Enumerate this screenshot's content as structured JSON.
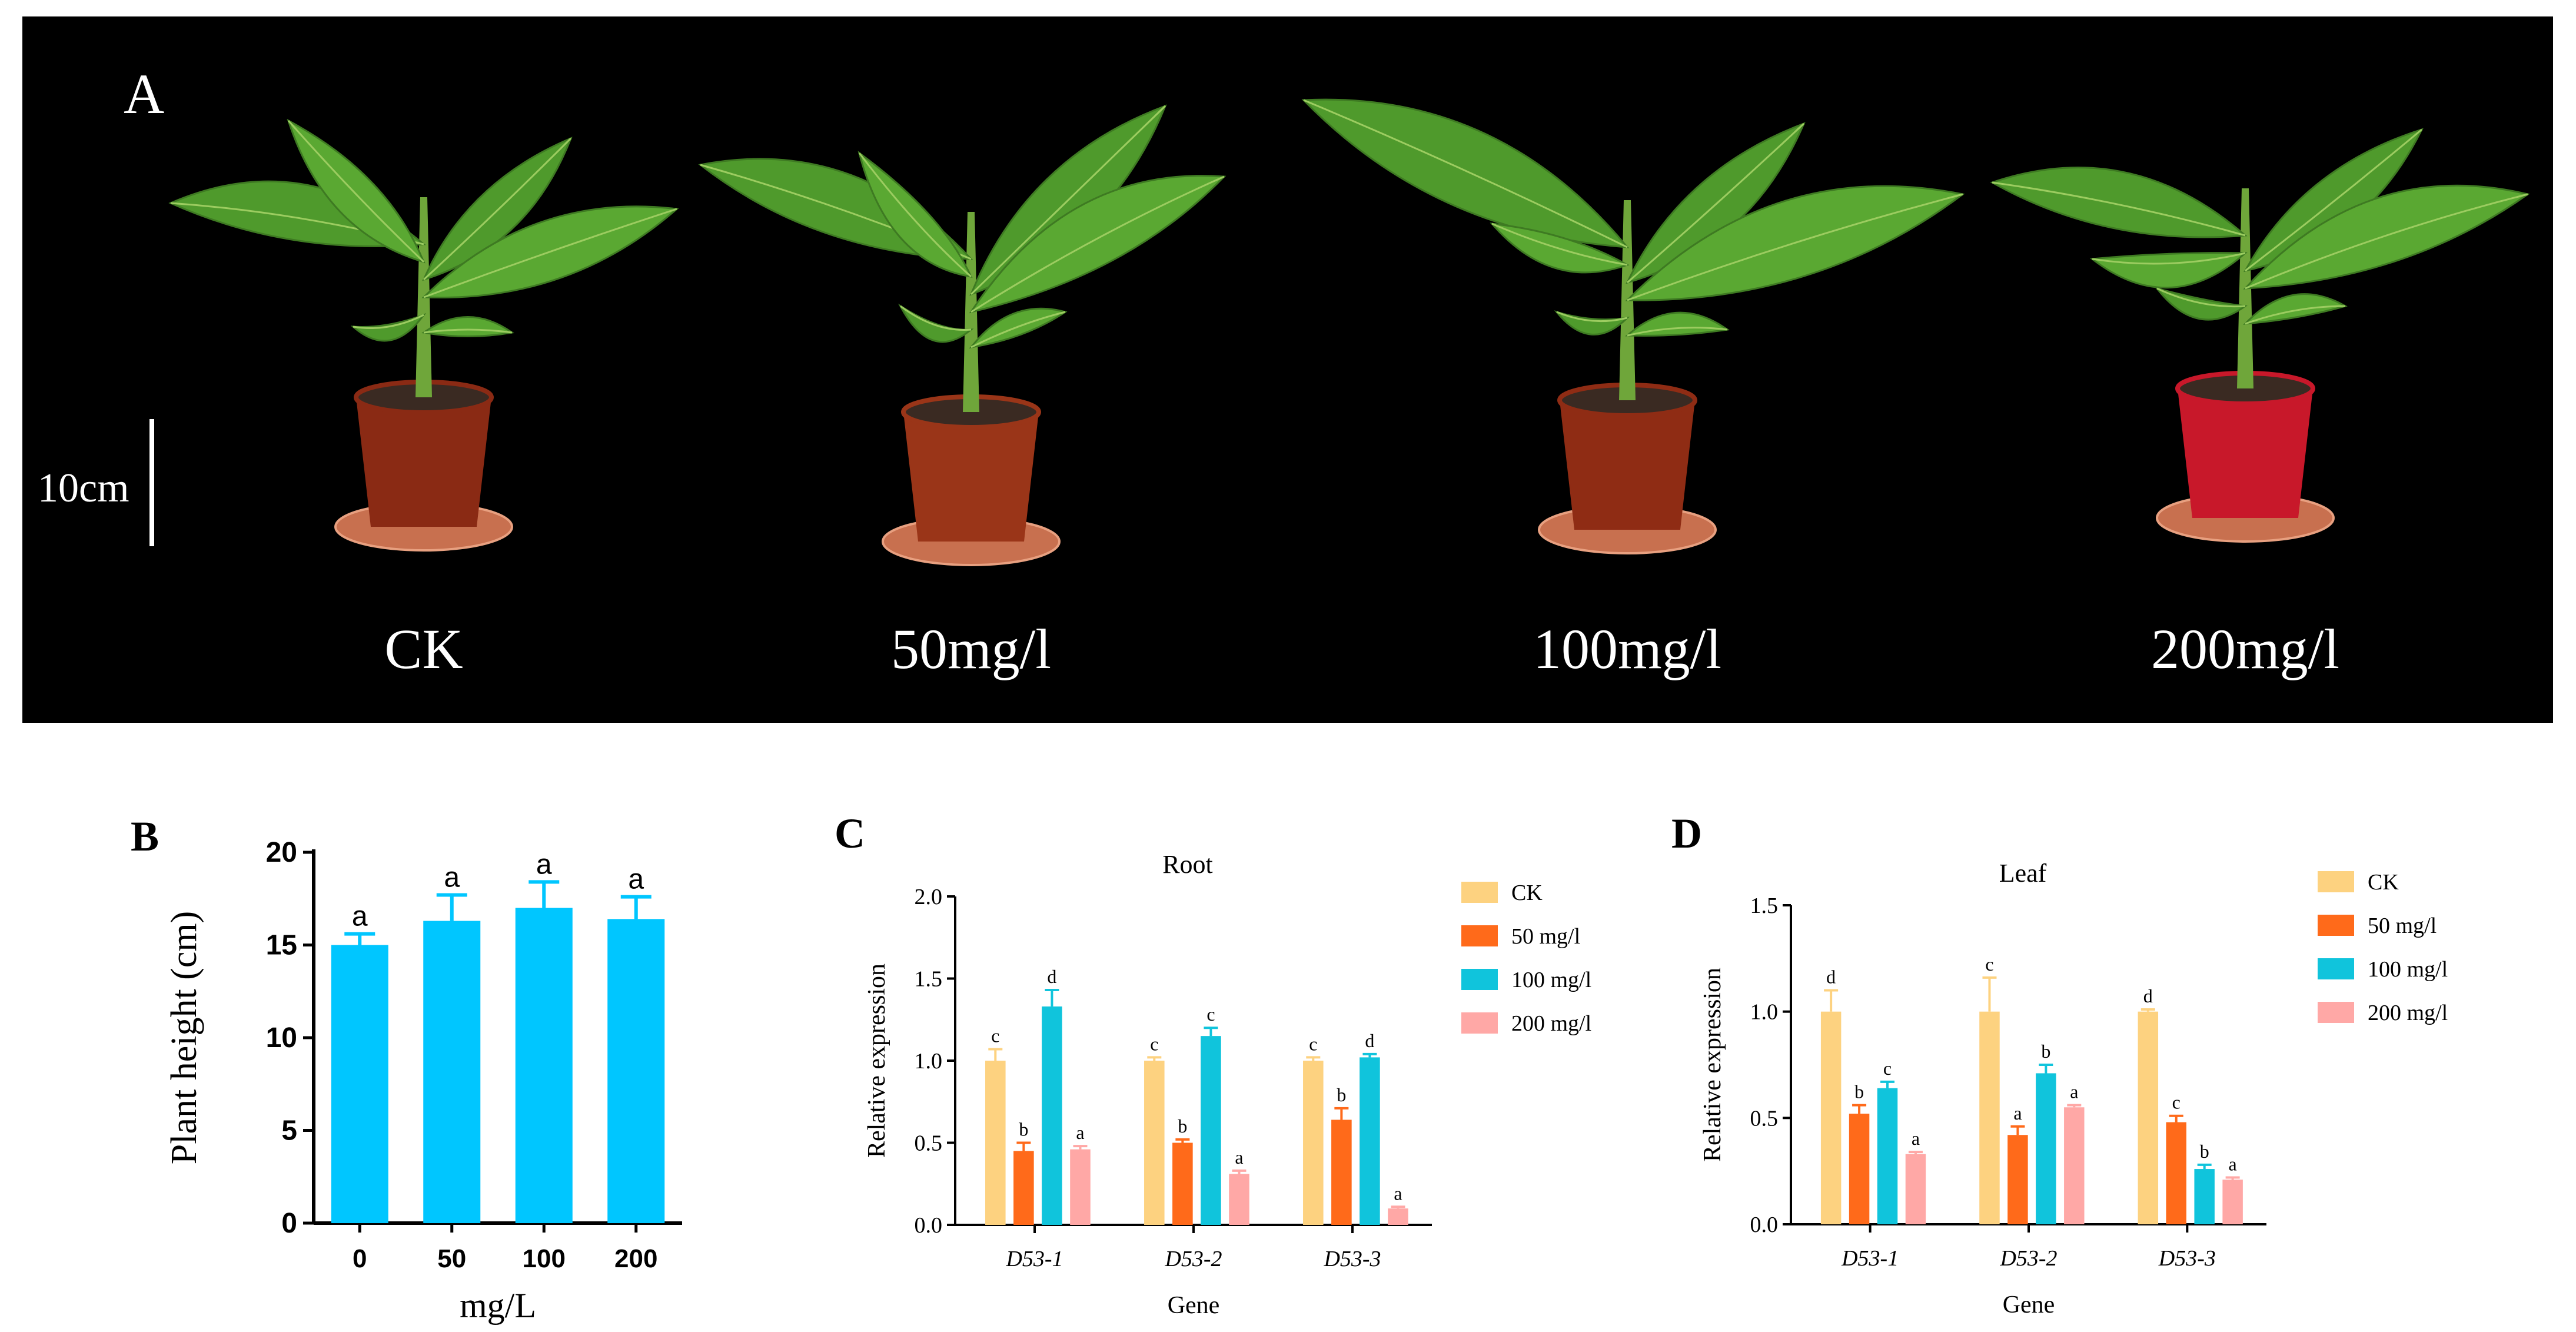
{
  "panelA": {
    "label": "A",
    "scale_bar_label": "10cm",
    "treatments": [
      "CK",
      "50mg/l",
      "100mg/l",
      "200mg/l"
    ],
    "pot_colors": [
      "#8a2a14",
      "#9a3518",
      "#8f2c14",
      "#c8182a"
    ],
    "leaf_color": "#4f9a2c",
    "background": "#000000"
  },
  "chart_data": [
    {
      "panel": "B",
      "type": "bar",
      "title": "",
      "categories": [
        "0",
        "50",
        "100",
        "200"
      ],
      "values": [
        15.0,
        16.3,
        17.0,
        16.4
      ],
      "errors": [
        0.6,
        1.4,
        1.4,
        1.2
      ],
      "letters": [
        "a",
        "a",
        "a",
        "a"
      ],
      "xlabel": "mg/L",
      "ylabel": "Plant height (cm)",
      "ylim": [
        0,
        20
      ],
      "yticks": [
        "0",
        "5",
        "10",
        "15",
        "20"
      ],
      "color": "#00c6ff"
    },
    {
      "panel": "C",
      "type": "bar",
      "title": "Root",
      "categories": [
        "D53-1",
        "D53-2",
        "D53-3"
      ],
      "xlabel": "Gene",
      "ylabel": "Relative expression",
      "ylim": [
        0,
        2.0
      ],
      "yticks": [
        "0.0",
        "0.5",
        "1.0",
        "1.5",
        "2.0"
      ],
      "legend": "right",
      "series": [
        {
          "name": "CK",
          "color": "#fdd280",
          "values": [
            1.0,
            1.0,
            1.0
          ],
          "errors": [
            0.07,
            0.02,
            0.02
          ],
          "letters": [
            "c",
            "c",
            "c"
          ]
        },
        {
          "name": "50 mg/l",
          "color": "#ff6a1a",
          "values": [
            0.45,
            0.5,
            0.64
          ],
          "errors": [
            0.05,
            0.02,
            0.07
          ],
          "letters": [
            "b",
            "b",
            "b"
          ]
        },
        {
          "name": "100 mg/l",
          "color": "#10c4dc",
          "values": [
            1.33,
            1.15,
            1.02
          ],
          "errors": [
            0.1,
            0.05,
            0.02
          ],
          "letters": [
            "d",
            "c",
            "d"
          ]
        },
        {
          "name": "200 mg/l",
          "color": "#ffa8a6",
          "values": [
            0.46,
            0.31,
            0.1
          ],
          "errors": [
            0.02,
            0.02,
            0.01
          ],
          "letters": [
            "a",
            "a",
            "a"
          ]
        }
      ]
    },
    {
      "panel": "D",
      "type": "bar",
      "title": "Leaf",
      "categories": [
        "D53-1",
        "D53-2",
        "D53-3"
      ],
      "xlabel": "Gene",
      "ylabel": "Relative expression",
      "ylim": [
        0,
        1.5
      ],
      "yticks": [
        "0.0",
        "0.5",
        "1.0",
        "1.5"
      ],
      "legend": "right",
      "series": [
        {
          "name": "CK",
          "color": "#fdd280",
          "values": [
            1.0,
            1.0,
            1.0
          ],
          "errors": [
            0.1,
            0.16,
            0.01
          ],
          "letters": [
            "d",
            "c",
            "d"
          ]
        },
        {
          "name": "50 mg/l",
          "color": "#ff6a1a",
          "values": [
            0.52,
            0.42,
            0.48
          ],
          "errors": [
            0.04,
            0.04,
            0.03
          ],
          "letters": [
            "b",
            "a",
            "c"
          ]
        },
        {
          "name": "100 mg/l",
          "color": "#10c4dc",
          "values": [
            0.64,
            0.71,
            0.26
          ],
          "errors": [
            0.03,
            0.04,
            0.02
          ],
          "letters": [
            "c",
            "b",
            "b"
          ]
        },
        {
          "name": "200 mg/l",
          "color": "#ffa8a6",
          "values": [
            0.33,
            0.55,
            0.21
          ],
          "errors": [
            0.01,
            0.01,
            0.01
          ],
          "letters": [
            "a",
            "a",
            "a"
          ]
        }
      ]
    }
  ]
}
